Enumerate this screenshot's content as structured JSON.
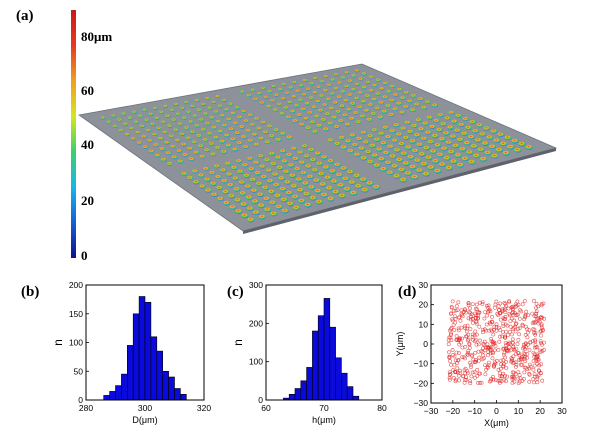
{
  "panels": {
    "a": "(a)",
    "b": "(b)",
    "c": "(c)",
    "d": "(d)"
  },
  "colorbar": {
    "ticks": [
      "80μm",
      "60",
      "40",
      "20",
      "0"
    ],
    "tick_values": [
      80,
      60,
      40,
      20,
      0
    ],
    "range": [
      0,
      85
    ],
    "colors": [
      "#10108a",
      "#1560d8",
      "#18b6e8",
      "#3cd06e",
      "#d6e620",
      "#f0a020",
      "#e63a1e",
      "#c81a1a"
    ]
  },
  "surface": {
    "grid_blocks": [
      2,
      2
    ],
    "lenses_per_block": [
      12,
      12
    ],
    "plane_color": "#8c919a"
  },
  "chart_data": [
    {
      "type": "bar",
      "panel": "(b)",
      "xlabel": "D(μm)",
      "ylabel": "n",
      "xlim": [
        280,
        320
      ],
      "ylim": [
        0,
        200
      ],
      "xticks": [
        "280",
        "300",
        "320"
      ],
      "yticks": [
        "0",
        "50",
        "100",
        "150",
        "200"
      ],
      "bin_edges": [
        286,
        288,
        290,
        292,
        294,
        296,
        298,
        300,
        302,
        304,
        306,
        308,
        310,
        312,
        314
      ],
      "values": [
        8,
        15,
        25,
        45,
        95,
        150,
        180,
        170,
        110,
        85,
        50,
        40,
        20,
        10
      ],
      "bar_color": "#0a0adc"
    },
    {
      "type": "bar",
      "panel": "(c)",
      "xlabel": "h(μm)",
      "ylabel": "n",
      "xlim": [
        60,
        80
      ],
      "ylim": [
        0,
        300
      ],
      "xticks": [
        "60",
        "70",
        "80"
      ],
      "yticks": [
        "0",
        "100",
        "200",
        "300"
      ],
      "bin_edges": [
        63,
        64,
        65,
        66,
        67,
        68,
        69,
        70,
        71,
        72,
        73,
        74,
        75,
        76
      ],
      "values": [
        5,
        15,
        30,
        50,
        85,
        180,
        220,
        265,
        190,
        110,
        70,
        35,
        10
      ],
      "bar_color": "#0a0adc"
    },
    {
      "type": "scatter",
      "panel": "(d)",
      "xlabel": "X(μm)",
      "ylabel": "Y(μm)",
      "xlim": [
        -30,
        30
      ],
      "ylim": [
        -30,
        30
      ],
      "xticks": [
        "−30",
        "−20",
        "−10",
        "0",
        "10",
        "20",
        "30"
      ],
      "yticks": [
        "−30",
        "−20",
        "−10",
        "0",
        "10",
        "20",
        "30"
      ],
      "n_points": 576,
      "x_range": [
        -22,
        22
      ],
      "y_range": [
        -20,
        22
      ],
      "point_color": "#e02020"
    }
  ]
}
